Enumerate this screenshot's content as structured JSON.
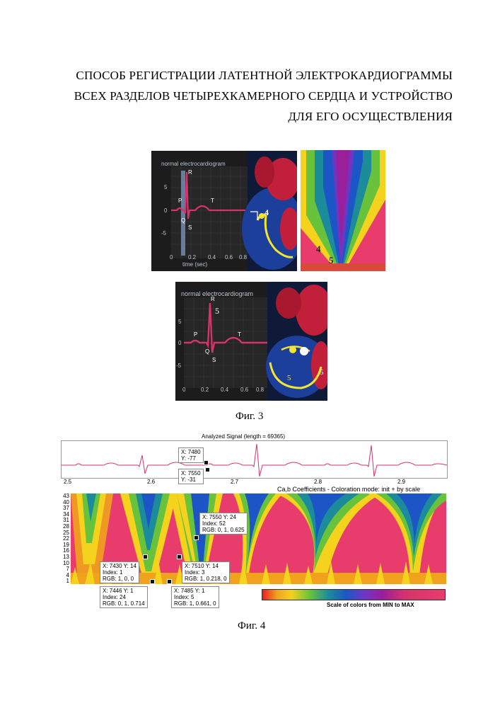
{
  "title": {
    "line1": "СПОСОБ РЕГИСТРАЦИИ ЛАТЕНТНОЙ ЭЛЕКТРОКАРДИОГРАММЫ",
    "line2": "ВСЕХ РАЗДЕЛОВ ЧЕТЫРЕХКАМЕРНОГО СЕРДЦА И УСТРОЙСТВО",
    "line3": "ДЛЯ ЕГО ОСУЩЕСТВЛЕНИЯ"
  },
  "fig3": {
    "caption": "Фиг. 3",
    "panel_top": {
      "title": "normal electrocardiogram",
      "xaxis_label": "time (sec)",
      "xticks": [
        "0",
        "0.2",
        "0.4",
        "0.6",
        "0.8"
      ],
      "yticks": [
        "5",
        "0",
        "-5"
      ],
      "wave_labels": [
        "P",
        "Q",
        "R",
        "S",
        "T"
      ],
      "marker_heart": "4",
      "marker_right_a": "4",
      "marker_right_b": "5"
    },
    "panel_bottom": {
      "title": "normal electrocardiogram",
      "xticks": [
        "0",
        "0.2",
        "0.4",
        "0.6",
        "0.8"
      ],
      "yticks": [
        "5",
        "0",
        "-5"
      ],
      "wave_labels": [
        "P",
        "Q",
        "R",
        "S",
        "T"
      ],
      "marker_r": "5",
      "marker_heart_a": "5",
      "marker_heart_b": "5"
    }
  },
  "fig4": {
    "caption": "Фиг. 4",
    "signal_title": "Analyzed Signal (length = 69365)",
    "signal_xticks": [
      "2.5",
      "2.6",
      "2.7",
      "2.8",
      "2.9"
    ],
    "coef_title": "Ca,b Coefficients - Coloration mode: init + by scale",
    "coef_yticks": [
      "43",
      "40",
      "37",
      "34",
      "31",
      "28",
      "25",
      "22",
      "19",
      "16",
      "13",
      "10",
      "7",
      "4",
      "1"
    ],
    "scale_label": "Scale of colors from MIN to MAX",
    "signal_tips": [
      {
        "l1": "X: 7480",
        "l2": "Y: -77"
      },
      {
        "l1": "X: 7550",
        "l2": "Y: -31"
      }
    ],
    "coef_tips": [
      {
        "l1": "X: 7550  Y: 24",
        "l2": "Index: 52",
        "l3": "RGB: 0, 1, 0.625"
      },
      {
        "l1": "X: 7430  Y: 14",
        "l2": "Index: 1",
        "l3": "RGB: 1, 0, 0"
      },
      {
        "l1": "X: 7510  Y: 14",
        "l2": "Index: 3",
        "l3": "RGB: 1, 0.218, 0"
      },
      {
        "l1": "X: 7446  Y: 1",
        "l2": "Index: 24",
        "l3": "RGB: 0, 1, 0.714"
      },
      {
        "l1": "X: 7485  Y: 1",
        "l2": "Index: 5",
        "l3": "RGB: 1, 0.661, 0"
      }
    ]
  },
  "colors": {
    "ecg_trace": "#d6326b",
    "ecg_bg": "#1e1e1e",
    "heart_blue": "#1d3f9c",
    "heart_red": "#c2203a",
    "wavelet_pink": "#e83c6c"
  }
}
